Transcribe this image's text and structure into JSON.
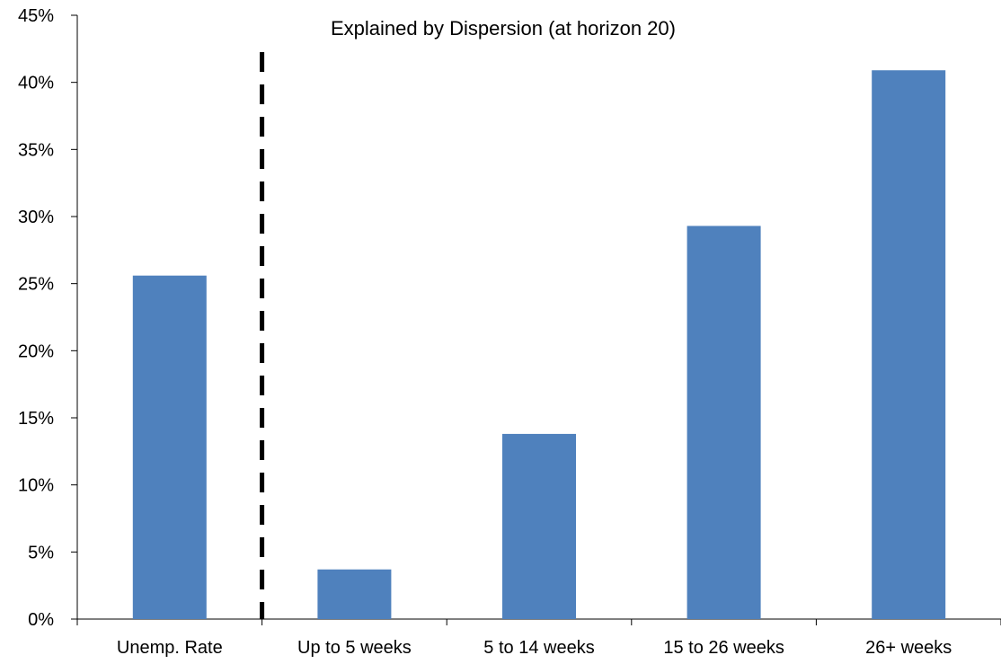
{
  "chart_data": {
    "type": "bar",
    "title": "Explained by Dispersion (at horizon 20)",
    "categories": [
      "Unemp. Rate",
      "Up to 5 weeks",
      "5 to 14 weeks",
      "15 to 26 weeks",
      "26+ weeks"
    ],
    "values": [
      25.6,
      3.7,
      13.8,
      29.3,
      40.9
    ],
    "unit": "%",
    "ylim": [
      0,
      45
    ],
    "yticks": [
      0,
      5,
      10,
      15,
      20,
      25,
      30,
      35,
      40,
      45
    ],
    "ytick_labels": [
      "0%",
      "5%",
      "10%",
      "15%",
      "20%",
      "25%",
      "30%",
      "35%",
      "40%",
      "45%"
    ],
    "xlabel": "",
    "ylabel": "",
    "grid": false,
    "legend": false,
    "bar_color": "#4F81BD",
    "separator": {
      "style": "dashed",
      "color": "#000000",
      "between_categories": [
        0,
        1
      ]
    }
  }
}
